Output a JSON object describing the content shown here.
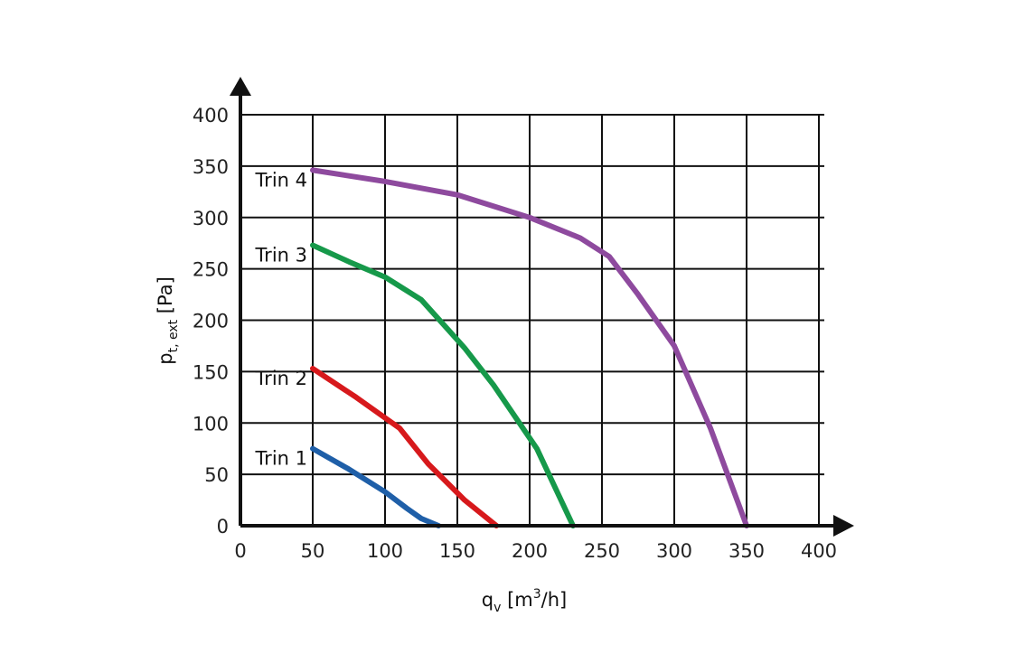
{
  "chart_data": {
    "type": "line",
    "title": "",
    "xlabel": "q",
    "xlabel_sub": "v",
    "xlabel_unit_open": " [m",
    "xlabel_unit_sup": "3",
    "xlabel_unit_close": "/h]",
    "ylabel": "p",
    "ylabel_sub": "t, ext",
    "ylabel_unit": " [Pa]",
    "xlim": [
      0,
      400
    ],
    "ylim": [
      0,
      400
    ],
    "x_ticks": [
      "0",
      "50",
      "100",
      "150",
      "200",
      "250",
      "300",
      "350",
      "400"
    ],
    "y_ticks": [
      "0",
      "50",
      "100",
      "150",
      "200",
      "250",
      "300",
      "350",
      "400"
    ],
    "grid": true,
    "series": [
      {
        "name": "Trin 1",
        "color": "#1f5fa8",
        "points": [
          [
            50,
            75
          ],
          [
            75,
            55
          ],
          [
            100,
            33
          ],
          [
            115,
            17
          ],
          [
            125,
            7
          ],
          [
            137,
            0
          ]
        ]
      },
      {
        "name": "Trin 2",
        "color": "#d7191c",
        "points": [
          [
            50,
            153
          ],
          [
            80,
            125
          ],
          [
            110,
            95
          ],
          [
            130,
            60
          ],
          [
            155,
            25
          ],
          [
            177,
            0
          ]
        ]
      },
      {
        "name": "Trin 3",
        "color": "#16994a",
        "points": [
          [
            50,
            273
          ],
          [
            75,
            257
          ],
          [
            100,
            242
          ],
          [
            125,
            220
          ],
          [
            155,
            173
          ],
          [
            175,
            137
          ],
          [
            205,
            75
          ],
          [
            230,
            0
          ]
        ]
      },
      {
        "name": "Trin 4",
        "color": "#8e4a9e",
        "points": [
          [
            50,
            346
          ],
          [
            100,
            335
          ],
          [
            150,
            322
          ],
          [
            200,
            300
          ],
          [
            235,
            280
          ],
          [
            255,
            262
          ],
          [
            275,
            225
          ],
          [
            300,
            175
          ],
          [
            325,
            95
          ],
          [
            350,
            0
          ]
        ]
      }
    ]
  }
}
